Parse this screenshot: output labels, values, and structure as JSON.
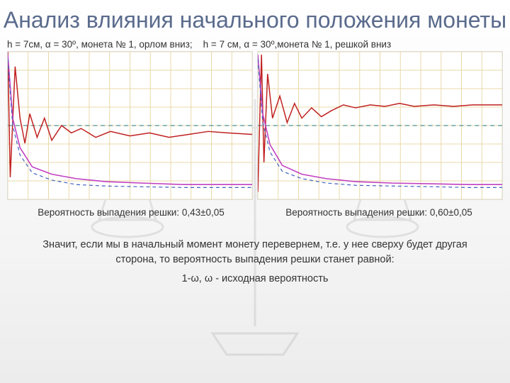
{
  "title": "Анализ влияния начального положения монеты",
  "caption_left": "h = 7см, α = 30º, монета № 1, орлом вниз;",
  "caption_right": "h = 7 см, α = 30º,монета № 1, решкой вниз",
  "prob_left": "Вероятность выпадения решки: 0,43±0,05",
  "prob_right": "Вероятность выпадения решки: 0,60±0,05",
  "conclusion_line1": "Значит, если мы в начальный момент монету перевернем, т.е. у нее сверху будет другая сторона, то вероятность выпадения решки станет равной:",
  "conclusion_line2": "1-ω, ω - исходная вероятность",
  "chart_left": {
    "type": "line",
    "background_color": "#ffffff",
    "grid_color": "#e8d9a8",
    "grid_nx": 12,
    "grid_ny": 8,
    "dash_line_color": "#4a9090",
    "dash_y": 0.5,
    "series": [
      {
        "name": "red",
        "color": "#c02020",
        "width": 1.5,
        "points": [
          [
            0,
            1.0
          ],
          [
            0.01,
            0.15
          ],
          [
            0.03,
            0.9
          ],
          [
            0.05,
            0.55
          ],
          [
            0.07,
            0.38
          ],
          [
            0.09,
            0.58
          ],
          [
            0.12,
            0.42
          ],
          [
            0.15,
            0.55
          ],
          [
            0.18,
            0.4
          ],
          [
            0.22,
            0.5
          ],
          [
            0.26,
            0.45
          ],
          [
            0.3,
            0.48
          ],
          [
            0.36,
            0.42
          ],
          [
            0.42,
            0.46
          ],
          [
            0.5,
            0.43
          ],
          [
            0.58,
            0.45
          ],
          [
            0.66,
            0.42
          ],
          [
            0.74,
            0.44
          ],
          [
            0.82,
            0.46
          ],
          [
            0.9,
            0.45
          ],
          [
            1.0,
            0.44
          ]
        ]
      },
      {
        "name": "magenta",
        "color": "#c040c0",
        "width": 1.6,
        "points": [
          [
            0,
            0.98
          ],
          [
            0.02,
            0.55
          ],
          [
            0.05,
            0.35
          ],
          [
            0.1,
            0.22
          ],
          [
            0.18,
            0.17
          ],
          [
            0.28,
            0.14
          ],
          [
            0.4,
            0.12
          ],
          [
            0.55,
            0.11
          ],
          [
            0.72,
            0.1
          ],
          [
            0.86,
            0.1
          ],
          [
            1.0,
            0.1
          ]
        ]
      },
      {
        "name": "blue-dash",
        "color": "#4060c0",
        "width": 1.2,
        "dash": true,
        "points": [
          [
            0,
            0.95
          ],
          [
            0.02,
            0.5
          ],
          [
            0.05,
            0.3
          ],
          [
            0.1,
            0.18
          ],
          [
            0.18,
            0.13
          ],
          [
            0.28,
            0.1
          ],
          [
            0.4,
            0.09
          ],
          [
            0.55,
            0.085
          ],
          [
            0.72,
            0.08
          ],
          [
            0.86,
            0.08
          ],
          [
            1.0,
            0.08
          ]
        ]
      }
    ]
  },
  "chart_right": {
    "type": "line",
    "background_color": "#ffffff",
    "grid_color": "#e8d9a8",
    "grid_nx": 12,
    "grid_ny": 8,
    "dash_line_color": "#4a9090",
    "dash_y": 0.5,
    "series": [
      {
        "name": "red",
        "color": "#c02020",
        "width": 1.5,
        "points": [
          [
            0,
            0.05
          ],
          [
            0.015,
            0.98
          ],
          [
            0.025,
            0.25
          ],
          [
            0.04,
            0.85
          ],
          [
            0.06,
            0.55
          ],
          [
            0.09,
            0.7
          ],
          [
            0.12,
            0.52
          ],
          [
            0.15,
            0.65
          ],
          [
            0.18,
            0.55
          ],
          [
            0.22,
            0.62
          ],
          [
            0.26,
            0.56
          ],
          [
            0.3,
            0.6
          ],
          [
            0.35,
            0.64
          ],
          [
            0.4,
            0.62
          ],
          [
            0.46,
            0.64
          ],
          [
            0.52,
            0.63
          ],
          [
            0.58,
            0.65
          ],
          [
            0.64,
            0.63
          ],
          [
            0.72,
            0.64
          ],
          [
            0.8,
            0.63
          ],
          [
            0.88,
            0.64
          ],
          [
            1.0,
            0.64
          ]
        ]
      },
      {
        "name": "magenta",
        "color": "#c040c0",
        "width": 1.6,
        "points": [
          [
            0,
            0.98
          ],
          [
            0.02,
            0.58
          ],
          [
            0.05,
            0.37
          ],
          [
            0.1,
            0.23
          ],
          [
            0.18,
            0.17
          ],
          [
            0.28,
            0.14
          ],
          [
            0.4,
            0.12
          ],
          [
            0.55,
            0.11
          ],
          [
            0.72,
            0.105
          ],
          [
            0.86,
            0.1
          ],
          [
            1.0,
            0.1
          ]
        ]
      },
      {
        "name": "blue-dash",
        "color": "#4060c0",
        "width": 1.2,
        "dash": true,
        "points": [
          [
            0,
            0.95
          ],
          [
            0.02,
            0.52
          ],
          [
            0.05,
            0.32
          ],
          [
            0.1,
            0.19
          ],
          [
            0.18,
            0.14
          ],
          [
            0.28,
            0.11
          ],
          [
            0.4,
            0.095
          ],
          [
            0.55,
            0.09
          ],
          [
            0.72,
            0.085
          ],
          [
            0.86,
            0.08
          ],
          [
            1.0,
            0.08
          ]
        ]
      }
    ]
  }
}
